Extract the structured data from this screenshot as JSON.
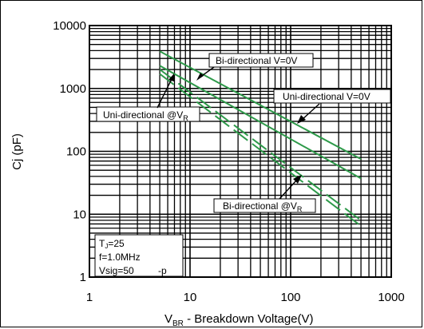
{
  "chart_data": {
    "type": "line",
    "x_scale": "log",
    "y_scale": "log",
    "xlim": [
      1,
      1000
    ],
    "ylim": [
      1,
      10000
    ],
    "x_ticks": [
      "1",
      "10",
      "100",
      "1000"
    ],
    "y_ticks": [
      "1",
      "10",
      "100",
      "1000",
      "10000"
    ],
    "xlabel": {
      "main": "V",
      "sub": "BR",
      "rest": " - Breakdown Voltage(V)"
    },
    "ylabel": "Cj (pF)",
    "grid": true,
    "line_color": "#2e9a4a",
    "series": [
      {
        "name": "Uni-directional V=0V",
        "style": "solid",
        "x": [
          5,
          500
        ],
        "y": [
          3900,
          75
        ]
      },
      {
        "name": "Bi-directional V=0V",
        "style": "solid",
        "x": [
          5,
          500
        ],
        "y": [
          2300,
          37
        ]
      },
      {
        "name": "Uni-directional @VR",
        "style": "dashed",
        "x": [
          5,
          500
        ],
        "y": [
          2000,
          8
        ]
      },
      {
        "name": "Bi-directional @VR",
        "style": "dashed",
        "x": [
          5,
          500
        ],
        "y": [
          1700,
          6.5
        ]
      }
    ],
    "annotations": [
      {
        "id": "bi-v0",
        "text": "Bi-directional V=0V"
      },
      {
        "id": "uni-v0",
        "text": "Uni-directional V=0V"
      },
      {
        "id": "uni-vr",
        "text": "Uni-directional @V",
        "sub": "R"
      },
      {
        "id": "bi-vr",
        "text": "Bi-directional @V",
        "sub": "R"
      }
    ],
    "conditions": {
      "line1": {
        "pre": "T",
        "sub": "J",
        "post": "=25"
      },
      "line2": "f=1.0MHz",
      "line3": "Vsig=50",
      "line3b": "-p"
    }
  }
}
